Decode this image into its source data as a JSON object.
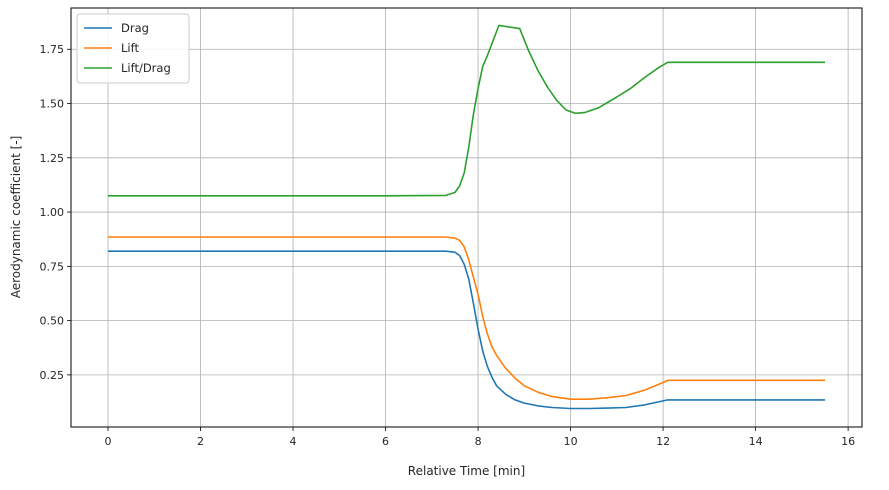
{
  "chart_data": {
    "type": "line",
    "xlabel": "Relative Time [min]",
    "ylabel": "Aerodynamic coefficient [-]",
    "xlim": [
      -0.8,
      16.3
    ],
    "ylim": [
      0.01,
      1.94
    ],
    "xticks": [
      0,
      2,
      4,
      6,
      8,
      10,
      12,
      14,
      16
    ],
    "xtick_labels": [
      "0",
      "2",
      "4",
      "6",
      "8",
      "10",
      "12",
      "14",
      "16"
    ],
    "yticks": [
      0.25,
      0.5,
      0.75,
      1.0,
      1.25,
      1.5,
      1.75
    ],
    "ytick_labels": [
      "0.25",
      "0.50",
      "0.75",
      "1.00",
      "1.25",
      "1.50",
      "1.75"
    ],
    "grid": true,
    "legend_position": "top-left",
    "series": [
      {
        "name": "Drag",
        "color": "#1f77b4",
        "x": [
          0,
          2,
          4,
          6,
          7.3,
          7.5,
          7.6,
          7.7,
          7.8,
          7.9,
          8.0,
          8.1,
          8.2,
          8.3,
          8.4,
          8.6,
          8.8,
          9.0,
          9.3,
          9.6,
          10.0,
          10.4,
          10.8,
          11.2,
          11.6,
          12.0,
          12.1,
          14,
          15.5
        ],
        "y": [
          0.82,
          0.82,
          0.82,
          0.82,
          0.82,
          0.815,
          0.8,
          0.76,
          0.69,
          0.58,
          0.46,
          0.36,
          0.29,
          0.24,
          0.2,
          0.16,
          0.135,
          0.12,
          0.107,
          0.1,
          0.095,
          0.095,
          0.097,
          0.1,
          0.112,
          0.13,
          0.135,
          0.135,
          0.135
        ]
      },
      {
        "name": "Lift",
        "color": "#ff7f0e",
        "x": [
          0,
          2,
          4,
          6,
          7.3,
          7.5,
          7.6,
          7.7,
          7.8,
          7.9,
          8.0,
          8.1,
          8.2,
          8.3,
          8.4,
          8.6,
          8.8,
          9.0,
          9.3,
          9.6,
          10.0,
          10.4,
          10.8,
          11.2,
          11.6,
          12.0,
          12.1,
          14,
          15.5
        ],
        "y": [
          0.885,
          0.885,
          0.885,
          0.885,
          0.885,
          0.88,
          0.87,
          0.84,
          0.78,
          0.7,
          0.62,
          0.52,
          0.44,
          0.38,
          0.34,
          0.28,
          0.235,
          0.2,
          0.17,
          0.15,
          0.138,
          0.138,
          0.145,
          0.155,
          0.18,
          0.215,
          0.225,
          0.225,
          0.225
        ]
      },
      {
        "name": "Lift/Drag",
        "color": "#2ca02c",
        "x": [
          0,
          2,
          4,
          6,
          7.3,
          7.5,
          7.6,
          7.7,
          7.8,
          7.9,
          8.0,
          8.1,
          8.2,
          8.45,
          8.9,
          9.1,
          9.3,
          9.5,
          9.7,
          9.9,
          10.1,
          10.3,
          10.6,
          11.0,
          11.3,
          11.6,
          11.9,
          12.1,
          14,
          15.5
        ],
        "y": [
          1.075,
          1.075,
          1.075,
          1.075,
          1.077,
          1.09,
          1.12,
          1.18,
          1.3,
          1.45,
          1.57,
          1.67,
          1.72,
          1.86,
          1.845,
          1.74,
          1.65,
          1.575,
          1.515,
          1.47,
          1.455,
          1.458,
          1.48,
          1.53,
          1.57,
          1.62,
          1.665,
          1.69,
          1.69,
          1.69
        ]
      }
    ]
  }
}
